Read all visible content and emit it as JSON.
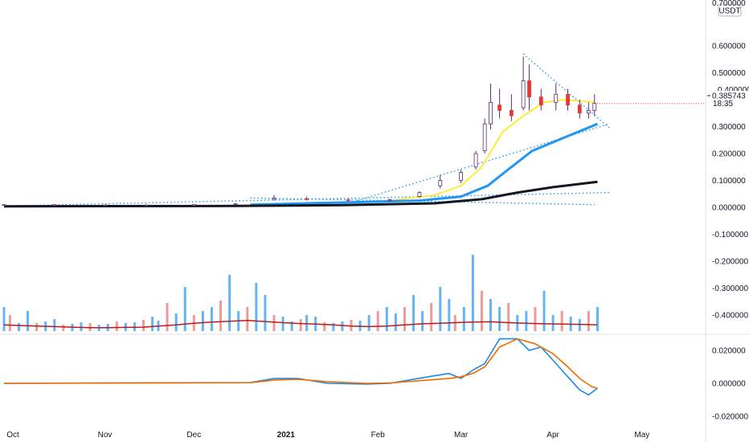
{
  "price_axis": {
    "currency": "USDT",
    "current_price": "0.385743",
    "countdown": "18:35",
    "top_partial_label": "0.700000",
    "hidden_label": "0.400000",
    "ticks": [
      "0.600000",
      "0.500000",
      "0.300000",
      "0.200000",
      "0.100000",
      "0.000000",
      "-0.100000",
      "-0.200000",
      "-0.300000",
      "-0.400000"
    ]
  },
  "macd_axis": {
    "ticks": [
      "0.020000",
      "0.000000",
      "-0.020000"
    ]
  },
  "time_axis": {
    "ticks": [
      "Oct",
      "Nov",
      "Dec",
      "2021",
      "Feb",
      "Mar",
      "Apr",
      "May"
    ]
  },
  "colors": {
    "up": "#26a69a",
    "down": "#ef5350",
    "candle_up": "#ffffff",
    "candle_down": "#e53935",
    "wick": "#5d2a72",
    "ma_yellow": "#ffeb3b",
    "ma_blue": "#2196f3",
    "ma_black": "#131722",
    "trend": "#2196f3",
    "vol_up": "#64b5f6",
    "vol_down": "#ef9a9a",
    "vol_ma": "#b71c1c",
    "macd": "#1e88e5",
    "signal": "#ef6c00",
    "price_tag": "#e53935"
  },
  "chart_data": [
    {
      "type": "candlestick",
      "x_range": [
        "2020-09-28",
        "2021-05-20"
      ],
      "ylim": [
        -0.42,
        0.71
      ],
      "candles": [
        {
          "date": "2020-09-28",
          "o": 0.01,
          "h": 0.011,
          "l": 0.009,
          "c": 0.01
        },
        {
          "date": "2020-10-15",
          "o": 0.01,
          "h": 0.011,
          "l": 0.009,
          "c": 0.01
        },
        {
          "date": "2020-11-01",
          "o": 0.009,
          "h": 0.01,
          "l": 0.008,
          "c": 0.009
        },
        {
          "date": "2020-11-15",
          "o": 0.009,
          "h": 0.01,
          "l": 0.008,
          "c": 0.009
        },
        {
          "date": "2020-12-01",
          "o": 0.01,
          "h": 0.011,
          "l": 0.009,
          "c": 0.01
        },
        {
          "date": "2020-12-15",
          "o": 0.012,
          "h": 0.015,
          "l": 0.01,
          "c": 0.013
        },
        {
          "date": "2020-12-28",
          "o": 0.03,
          "h": 0.045,
          "l": 0.025,
          "c": 0.035
        },
        {
          "date": "2021-01-08",
          "o": 0.032,
          "h": 0.04,
          "l": 0.025,
          "c": 0.03
        },
        {
          "date": "2021-01-22",
          "o": 0.028,
          "h": 0.033,
          "l": 0.022,
          "c": 0.027
        },
        {
          "date": "2021-02-05",
          "o": 0.027,
          "h": 0.032,
          "l": 0.022,
          "c": 0.028
        },
        {
          "date": "2021-02-15",
          "o": 0.04,
          "h": 0.06,
          "l": 0.035,
          "c": 0.055
        },
        {
          "date": "2021-02-22",
          "o": 0.08,
          "h": 0.12,
          "l": 0.07,
          "c": 0.1
        },
        {
          "date": "2021-03-01",
          "o": 0.1,
          "h": 0.14,
          "l": 0.09,
          "c": 0.13
        },
        {
          "date": "2021-03-06",
          "o": 0.15,
          "h": 0.21,
          "l": 0.14,
          "c": 0.2
        },
        {
          "date": "2021-03-09",
          "o": 0.21,
          "h": 0.33,
          "l": 0.2,
          "c": 0.31
        },
        {
          "date": "2021-03-11",
          "o": 0.31,
          "h": 0.46,
          "l": 0.29,
          "c": 0.39
        },
        {
          "date": "2021-03-14",
          "o": 0.38,
          "h": 0.44,
          "l": 0.33,
          "c": 0.36
        },
        {
          "date": "2021-03-18",
          "o": 0.36,
          "h": 0.42,
          "l": 0.32,
          "c": 0.34
        },
        {
          "date": "2021-03-22",
          "o": 0.37,
          "h": 0.56,
          "l": 0.36,
          "c": 0.47
        },
        {
          "date": "2021-03-24",
          "o": 0.47,
          "h": 0.53,
          "l": 0.36,
          "c": 0.41
        },
        {
          "date": "2021-03-28",
          "o": 0.41,
          "h": 0.44,
          "l": 0.36,
          "c": 0.38
        },
        {
          "date": "2021-04-02",
          "o": 0.39,
          "h": 0.46,
          "l": 0.36,
          "c": 0.42
        },
        {
          "date": "2021-04-06",
          "o": 0.42,
          "h": 0.44,
          "l": 0.36,
          "c": 0.38
        },
        {
          "date": "2021-04-10",
          "o": 0.38,
          "h": 0.4,
          "l": 0.33,
          "c": 0.35
        },
        {
          "date": "2021-04-13",
          "o": 0.35,
          "h": 0.39,
          "l": 0.33,
          "c": 0.36
        },
        {
          "date": "2021-04-15",
          "o": 0.36,
          "h": 0.42,
          "l": 0.34,
          "c": 0.386
        }
      ],
      "moving_averages": [
        {
          "color": "ma_yellow",
          "points": [
            [
              "2021-02-01",
              0.02
            ],
            [
              "2021-02-20",
              0.045
            ],
            [
              "2021-03-01",
              0.08
            ],
            [
              "2021-03-08",
              0.15
            ],
            [
              "2021-03-15",
              0.28
            ],
            [
              "2021-03-22",
              0.34
            ],
            [
              "2021-03-29",
              0.39
            ],
            [
              "2021-04-05",
              0.4
            ],
            [
              "2021-04-15",
              0.39
            ]
          ]
        },
        {
          "color": "ma_blue",
          "points": [
            [
              "2020-12-20",
              0.01
            ],
            [
              "2021-01-20",
              0.018
            ],
            [
              "2021-02-15",
              0.025
            ],
            [
              "2021-03-01",
              0.04
            ],
            [
              "2021-03-10",
              0.08
            ],
            [
              "2021-03-18",
              0.15
            ],
            [
              "2021-03-25",
              0.21
            ],
            [
              "2021-04-05",
              0.26
            ],
            [
              "2021-04-16",
              0.31
            ]
          ]
        },
        {
          "color": "ma_black",
          "points": [
            [
              "2020-09-28",
              0.004
            ],
            [
              "2020-12-15",
              0.005
            ],
            [
              "2021-01-20",
              0.008
            ],
            [
              "2021-02-20",
              0.015
            ],
            [
              "2021-03-08",
              0.03
            ],
            [
              "2021-03-20",
              0.055
            ],
            [
              "2021-04-01",
              0.075
            ],
            [
              "2021-04-16",
              0.095
            ]
          ]
        }
      ],
      "trendlines": [
        {
          "from": [
            "2021-01-25",
            0.025
          ],
          "to": [
            "2021-04-20",
            0.31
          ]
        },
        {
          "from": [
            "2021-03-22",
            0.57
          ],
          "to": [
            "2021-04-20",
            0.295
          ]
        },
        {
          "from": [
            "2020-12-20",
            0.035
          ],
          "to": [
            "2021-04-15",
            0.01
          ]
        },
        {
          "from": [
            "2020-09-28",
            0.005
          ],
          "to": [
            "2021-04-20",
            0.055
          ]
        }
      ]
    },
    {
      "type": "bar",
      "panel": "volume",
      "x_range": [
        "2020-09-28",
        "2021-05-20"
      ],
      "values": [
        0.3,
        0.2,
        0.1,
        0.25,
        0.1,
        0.12,
        0.15,
        0.08,
        0.09,
        0.11,
        0.1,
        0.08,
        0.09,
        0.12,
        0.1,
        0.11,
        0.14,
        0.18,
        0.13,
        0.35,
        0.22,
        0.55,
        0.2,
        0.25,
        0.3,
        0.38,
        0.7,
        0.25,
        0.3,
        0.6,
        0.45,
        0.2,
        0.18,
        0.12,
        0.15,
        0.2,
        0.18,
        0.11,
        0.1,
        0.12,
        0.14,
        0.13,
        0.2,
        0.25,
        0.3,
        0.22,
        0.3,
        0.45,
        0.25,
        0.35,
        0.55,
        0.4,
        0.2,
        0.3,
        0.95,
        0.5,
        0.4,
        0.3,
        0.35,
        0.2,
        0.25,
        0.3,
        0.5,
        0.2,
        0.25,
        0.18,
        0.15,
        0.25,
        0.3
      ],
      "ma": [
        0.22,
        0.2,
        0.18,
        0.16,
        0.14,
        0.12,
        0.12,
        0.13,
        0.14,
        0.18,
        0.22,
        0.28,
        0.32,
        0.35,
        0.38,
        0.34,
        0.3,
        0.27,
        0.25,
        0.22,
        0.18,
        0.16,
        0.18,
        0.22,
        0.26,
        0.28,
        0.3,
        0.32,
        0.33,
        0.3,
        0.28,
        0.26,
        0.25,
        0.24,
        0.22
      ]
    },
    {
      "type": "line",
      "panel": "macd",
      "x_range": [
        "2020-09-28",
        "2021-05-20"
      ],
      "ylim": [
        -0.022,
        0.027
      ],
      "series": [
        {
          "color": "macd",
          "values": [
            [
              "2020-09-28",
              0.0
            ],
            [
              "2020-12-20",
              0.0005
            ],
            [
              "2020-12-28",
              0.003
            ],
            [
              "2021-01-05",
              0.003
            ],
            [
              "2021-01-15",
              0.0
            ],
            [
              "2021-01-28",
              -0.0005
            ],
            [
              "2021-02-05",
              0.0
            ],
            [
              "2021-02-18",
              0.004
            ],
            [
              "2021-02-25",
              0.006
            ],
            [
              "2021-03-01",
              0.003
            ],
            [
              "2021-03-05",
              0.008
            ],
            [
              "2021-03-09",
              0.012
            ],
            [
              "2021-03-14",
              0.027
            ],
            [
              "2021-03-20",
              0.027
            ],
            [
              "2021-03-24",
              0.02
            ],
            [
              "2021-03-28",
              0.022
            ],
            [
              "2021-04-02",
              0.012
            ],
            [
              "2021-04-06",
              0.004
            ],
            [
              "2021-04-10",
              -0.004
            ],
            [
              "2021-04-13",
              -0.007
            ],
            [
              "2021-04-16",
              -0.003
            ]
          ]
        },
        {
          "color": "signal",
          "values": [
            [
              "2020-09-28",
              0.0
            ],
            [
              "2020-12-20",
              0.0004
            ],
            [
              "2020-12-28",
              0.002
            ],
            [
              "2021-01-05",
              0.0025
            ],
            [
              "2021-01-15",
              0.001
            ],
            [
              "2021-01-28",
              0.0
            ],
            [
              "2021-02-05",
              0.0002
            ],
            [
              "2021-02-18",
              0.002
            ],
            [
              "2021-02-25",
              0.003
            ],
            [
              "2021-03-01",
              0.004
            ],
            [
              "2021-03-05",
              0.006
            ],
            [
              "2021-03-09",
              0.01
            ],
            [
              "2021-03-14",
              0.022
            ],
            [
              "2021-03-20",
              0.027
            ],
            [
              "2021-03-26",
              0.024
            ],
            [
              "2021-04-01",
              0.018
            ],
            [
              "2021-04-06",
              0.01
            ],
            [
              "2021-04-10",
              0.003
            ],
            [
              "2021-04-14",
              -0.002
            ],
            [
              "2021-04-16",
              -0.003
            ]
          ]
        }
      ]
    }
  ]
}
